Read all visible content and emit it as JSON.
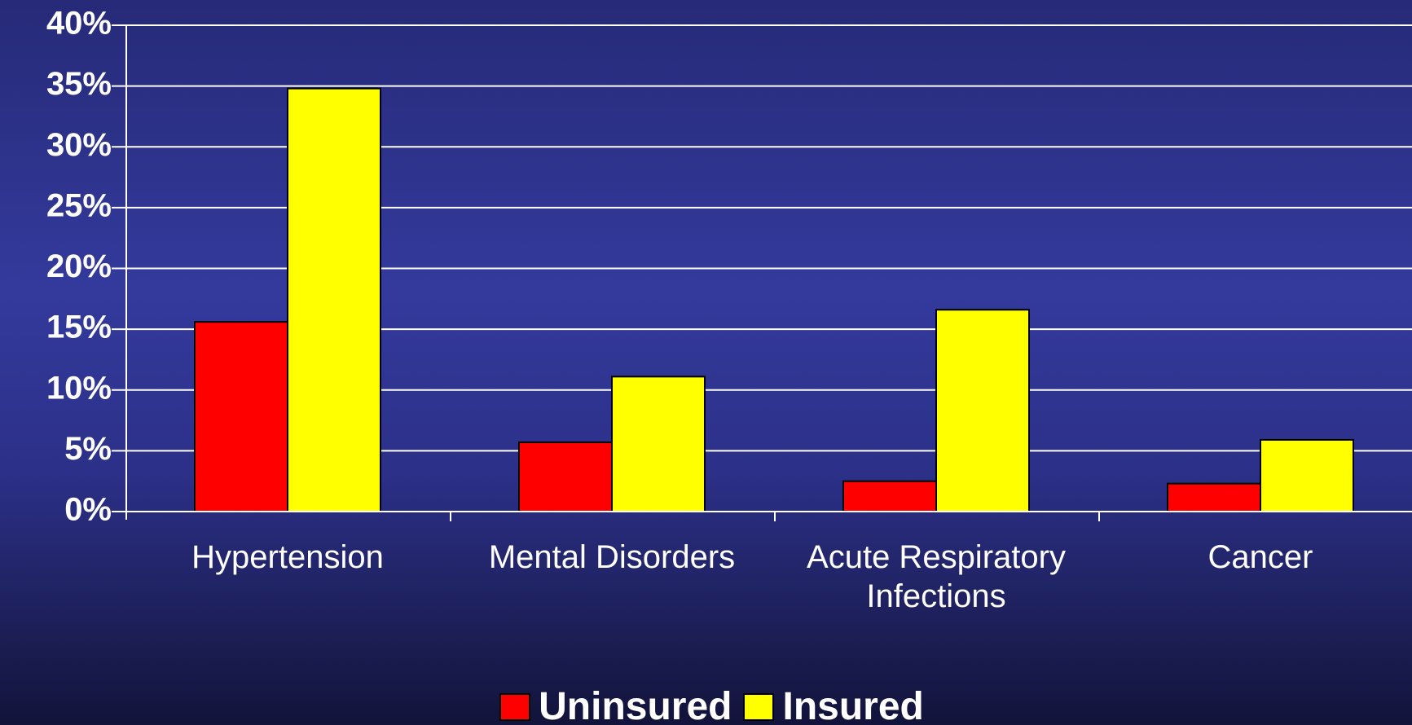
{
  "chart_data": {
    "type": "bar",
    "categories": [
      "Hypertension",
      "Mental Disorders",
      "Acute Respiratory Infections",
      "Cancer"
    ],
    "series": [
      {
        "name": "Uninsured",
        "color": "#ff0000",
        "values": [
          15.6,
          5.7,
          2.5,
          2.3
        ]
      },
      {
        "name": "Insured",
        "color": "#ffff00",
        "values": [
          34.8,
          11.1,
          16.6,
          5.9
        ]
      }
    ],
    "ylim": [
      0,
      40
    ],
    "yticks": [
      {
        "value": 0,
        "label": "0%"
      },
      {
        "value": 5,
        "label": "5%"
      },
      {
        "value": 10,
        "label": "10%"
      },
      {
        "value": 15,
        "label": "15%"
      },
      {
        "value": 20,
        "label": "20%"
      },
      {
        "value": 25,
        "label": "25%"
      },
      {
        "value": 30,
        "label": "30%"
      },
      {
        "value": 35,
        "label": "35%"
      },
      {
        "value": 40,
        "label": "40%"
      }
    ],
    "grid": true,
    "legend": "bottom"
  }
}
